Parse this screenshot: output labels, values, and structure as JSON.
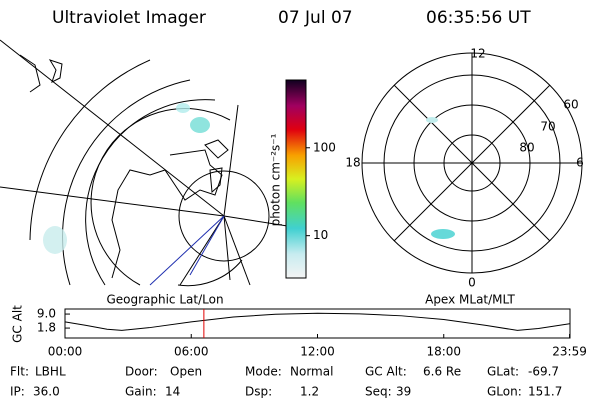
{
  "header": {
    "title": "Ultraviolet Imager",
    "date": "07 Jul 07",
    "time": "06:35:56 UT"
  },
  "left_map": {
    "label": "Geographic Lat/Lon"
  },
  "polar_map": {
    "label": "Apex MLat/MLT",
    "mlt_labels": [
      "12",
      "6",
      "0",
      "18"
    ],
    "lat_labels": [
      "60",
      "70",
      "80"
    ]
  },
  "colorbar": {
    "label": "photon cm⁻²s⁻¹",
    "log": true,
    "lim": [
      3.3,
      590
    ],
    "ticks": [
      10,
      100
    ]
  },
  "altitude_plot": {
    "ylabel": "GC Alt",
    "ylim": [
      -3.3,
      11.6
    ],
    "yticks": [
      1.8,
      {
        "value": 9,
        "label": "9.0"
      }
    ],
    "xlim": [
      0,
      24
    ],
    "xticks": [
      {
        "value": 0,
        "label": "00:00"
      },
      {
        "value": 6,
        "label": "06:00"
      },
      {
        "value": 12,
        "label": "12:00"
      },
      {
        "value": 18,
        "label": "18:00"
      },
      {
        "value": 23.98,
        "label": "23:59"
      }
    ],
    "x": [
      0,
      1,
      2,
      2.7,
      4,
      6,
      8,
      10,
      12,
      14,
      16,
      18,
      20,
      21.5,
      22.5,
      23.98
    ],
    "values": [
      5,
      3.2,
      1.2,
      0.6,
      2,
      5,
      7.5,
      8.9,
      9.4,
      9.1,
      8.1,
      6.2,
      3.2,
      0.6,
      1.6,
      4
    ],
    "marker_time": 6.6,
    "marker_color": "#e00000"
  },
  "info": [
    [
      [
        "Flt:",
        "LBHL"
      ],
      [
        "Door:",
        "Open"
      ],
      [
        "Mode:",
        "Normal"
      ],
      [
        "GC Alt:",
        "6.6 Re"
      ],
      [
        "GLat:",
        "-69.7"
      ]
    ],
    [
      [
        "IP:",
        "36.0"
      ],
      [
        "Gain:",
        "14"
      ],
      [
        "Dsp:",
        "1.2"
      ],
      [
        "Seq:",
        "39"
      ],
      [
        "GLon:",
        "151.7"
      ]
    ]
  ]
}
